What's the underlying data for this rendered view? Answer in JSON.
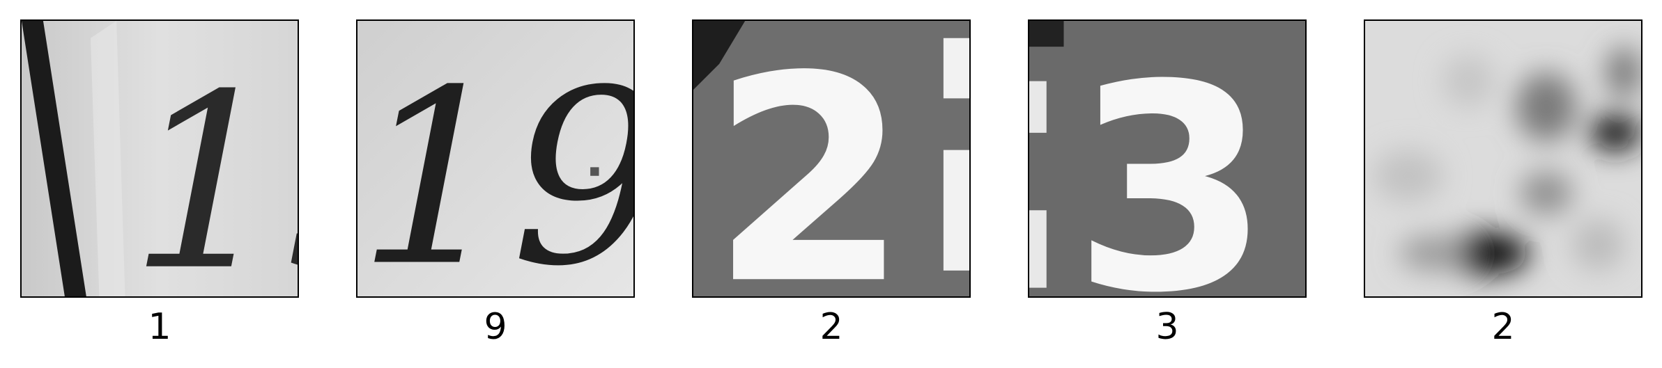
{
  "samples": [
    {
      "label": "1",
      "image": "grayscale digit crop showing dark '19' on light background"
    },
    {
      "label": "9",
      "image": "grayscale digit crop showing dark '19' on light background"
    },
    {
      "label": "2",
      "image": "grayscale digit crop showing white '2' on gray background"
    },
    {
      "label": "3",
      "image": "grayscale digit crop showing white '3' on gray background"
    },
    {
      "label": "2",
      "image": "blurry grayscale crop"
    }
  ]
}
